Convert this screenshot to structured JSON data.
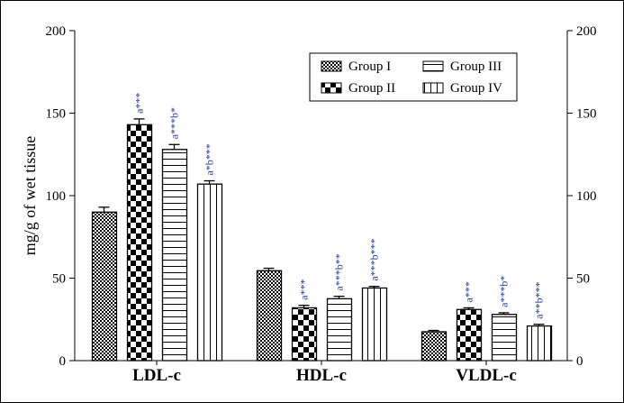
{
  "chart_data": {
    "type": "bar",
    "title": "",
    "xlabel": "",
    "ylabel": "mg/g of wet tissue",
    "ylim": [
      0,
      200
    ],
    "yticks": [
      "0",
      "50",
      "100",
      "150",
      "200"
    ],
    "yticks_right": [
      "0",
      "50",
      "100",
      "150",
      "200"
    ],
    "categories": [
      "LDL-c",
      "HDL-c",
      "VLDL-c"
    ],
    "legend_position": "top-right",
    "series": [
      {
        "name": "Group I",
        "pattern": "fine-checker",
        "values": [
          90,
          54.5,
          17.5
        ],
        "errors": [
          3,
          1.5,
          0.8
        ],
        "annotations": [
          "",
          "",
          ""
        ]
      },
      {
        "name": "Group II",
        "pattern": "coarse-checker",
        "values": [
          143,
          32,
          31
        ],
        "errors": [
          3.5,
          1.5,
          1
        ],
        "annotations": [
          "a***",
          "a***",
          "a***"
        ]
      },
      {
        "name": "Group III",
        "pattern": "horizontal-lines",
        "values": [
          128,
          37.5,
          28
        ],
        "errors": [
          3,
          1.5,
          1
        ],
        "annotations": [
          "a***b*",
          "a***b**",
          "a***b*"
        ]
      },
      {
        "name": "Group IV",
        "pattern": "vertical-lines",
        "values": [
          107,
          44,
          21
        ],
        "errors": [
          2,
          1,
          1
        ],
        "annotations": [
          "a*b***",
          "a***b***",
          "a**b***"
        ]
      }
    ],
    "annotation_color": "#1f3fa8"
  }
}
